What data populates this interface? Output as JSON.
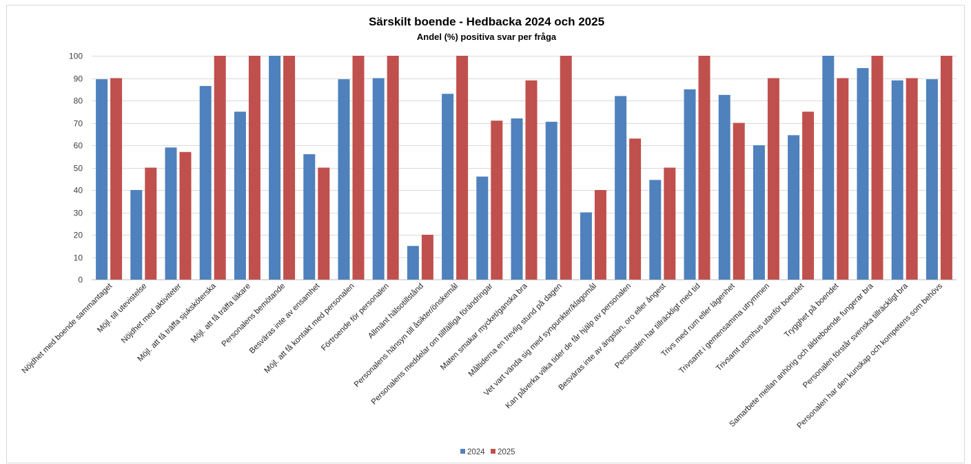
{
  "chart_data": {
    "type": "bar",
    "title": "Särskilt boende - Hedbacka 2024 och 2025",
    "subtitle": "Andel (%) positiva svar per fråga",
    "ylim": [
      0,
      100
    ],
    "yticks": [
      0,
      10,
      20,
      30,
      40,
      50,
      60,
      70,
      80,
      90,
      100
    ],
    "grid": true,
    "legend_position": "bottom",
    "colors": {
      "2024": "#4f81bd",
      "2025": "#c0504d"
    },
    "categories": [
      "Nöjdhet med boende sammantaget",
      "Möjl. till utevistelse",
      "Nöjdhet med aktiviteter",
      "Möjl. att få träffa sjuksköterska",
      "Möjl. att få träffa läkare",
      "Personalens bemötande",
      "Besväras inte av ensamhet",
      "Möjl. att få kontakt med personalen",
      "Förtroende för personalen",
      "Allmänt hälsotillstånd",
      "Personalens hänsyn till åsikter/önskemål",
      "Personalens meddelar om tillfälliga förändringar",
      "Maten smakar mycket/ganska bra",
      "Måltiderna en trevlig stund på dagen",
      "Vet vart vända sig med synpunkter/klagomål",
      "Kan påverka vilka tider de får hjälp av personalen",
      "Besväras inte av ängslan, oro eller ångest",
      "Personalen har tillräckligt med tid",
      "Trivs med rum eller lägenhet",
      "Trivsamt i gemensamma utrymmen",
      "Trivsamt utomhus utanför boendet",
      "Trygghet på boendet",
      "Samarbete mellan anhörig och äldreboende fungerar bra",
      "Personalen förstår svenska tillräckligt bra",
      "Personalen har den kunskap och kompetens som behövs"
    ],
    "series": [
      {
        "name": "2024",
        "values": [
          89.5,
          40,
          59,
          86.5,
          75,
          100,
          56,
          89.5,
          90,
          15,
          83,
          46,
          72,
          70.5,
          30,
          82,
          44.5,
          85,
          82.5,
          60,
          64.5,
          100,
          94.5,
          89,
          89.5
        ]
      },
      {
        "name": "2025",
        "values": [
          90,
          50,
          57,
          100,
          100,
          100,
          50,
          100,
          100,
          20,
          100,
          71,
          89,
          100,
          40,
          63,
          50,
          100,
          70,
          90,
          75,
          90,
          100,
          90,
          100
        ]
      }
    ]
  }
}
